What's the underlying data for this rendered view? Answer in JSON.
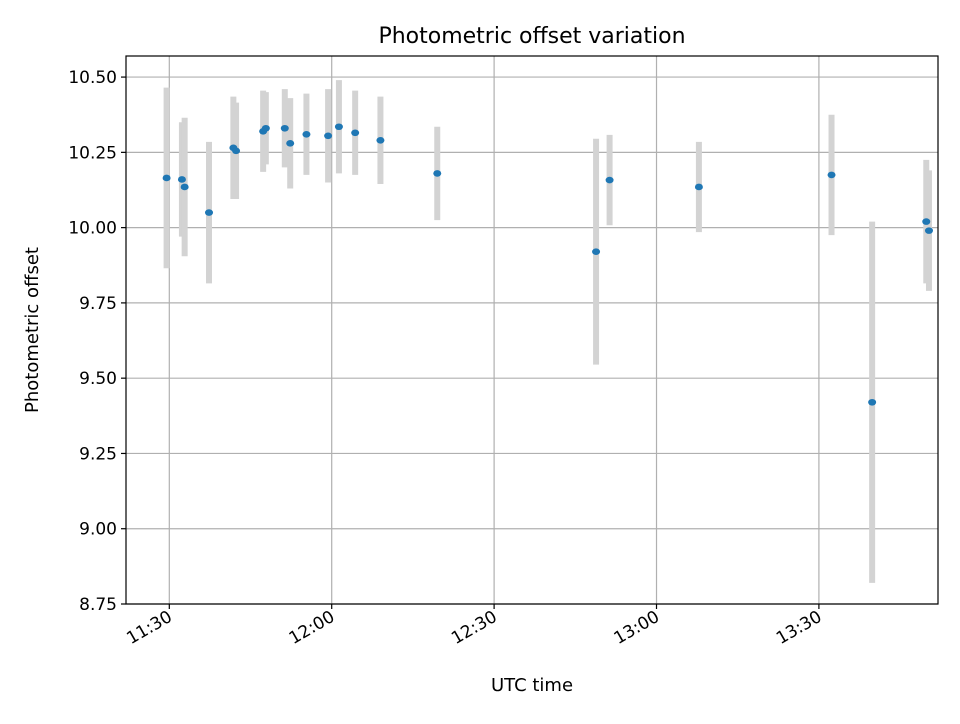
{
  "chart_data": {
    "type": "scatter",
    "title": "Photometric offset variation",
    "xlabel": "UTC time",
    "ylabel": "Photometric offset",
    "xlim": [
      "11:22",
      "13:52"
    ],
    "ylim": [
      8.75,
      10.57
    ],
    "grid": true,
    "legend": "none",
    "x_ticks": [
      "11:30",
      "12:00",
      "12:30",
      "13:00",
      "13:30"
    ],
    "y_ticks": [
      "8.75",
      "9.00",
      "9.25",
      "9.50",
      "9.75",
      "10.00",
      "10.25",
      "10.50"
    ],
    "marker_color": "#1f77b4",
    "errorbar_color": "#d3d3d3",
    "points": [
      {
        "time": "11:29:30",
        "y": 10.165,
        "err": 0.3
      },
      {
        "time": "11:32:20",
        "y": 10.16,
        "err": 0.19
      },
      {
        "time": "11:32:50",
        "y": 10.135,
        "err": 0.23
      },
      {
        "time": "11:37:20",
        "y": 10.05,
        "err": 0.235
      },
      {
        "time": "11:41:50",
        "y": 10.265,
        "err": 0.17
      },
      {
        "time": "11:42:20",
        "y": 10.255,
        "err": 0.16
      },
      {
        "time": "11:47:20",
        "y": 10.32,
        "err": 0.135
      },
      {
        "time": "11:47:50",
        "y": 10.33,
        "err": 0.12
      },
      {
        "time": "11:51:20",
        "y": 10.33,
        "err": 0.13
      },
      {
        "time": "11:52:20",
        "y": 10.28,
        "err": 0.15
      },
      {
        "time": "11:55:20",
        "y": 10.31,
        "err": 0.135
      },
      {
        "time": "11:59:20",
        "y": 10.305,
        "err": 0.155
      },
      {
        "time": "12:01:20",
        "y": 10.335,
        "err": 0.155
      },
      {
        "time": "12:04:20",
        "y": 10.315,
        "err": 0.14
      },
      {
        "time": "12:09:00",
        "y": 10.29,
        "err": 0.145
      },
      {
        "time": "12:19:30",
        "y": 10.18,
        "err": 0.155
      },
      {
        "time": "12:48:50",
        "y": 9.92,
        "err": 0.375
      },
      {
        "time": "12:51:20",
        "y": 10.158,
        "err": 0.15
      },
      {
        "time": "13:07:50",
        "y": 10.135,
        "err": 0.15
      },
      {
        "time": "13:32:20",
        "y": 10.175,
        "err": 0.2
      },
      {
        "time": "13:39:50",
        "y": 9.42,
        "err": 0.6
      },
      {
        "time": "13:49:50",
        "y": 10.02,
        "err": 0.205
      },
      {
        "time": "13:50:20",
        "y": 9.99,
        "err": 0.2
      }
    ]
  }
}
